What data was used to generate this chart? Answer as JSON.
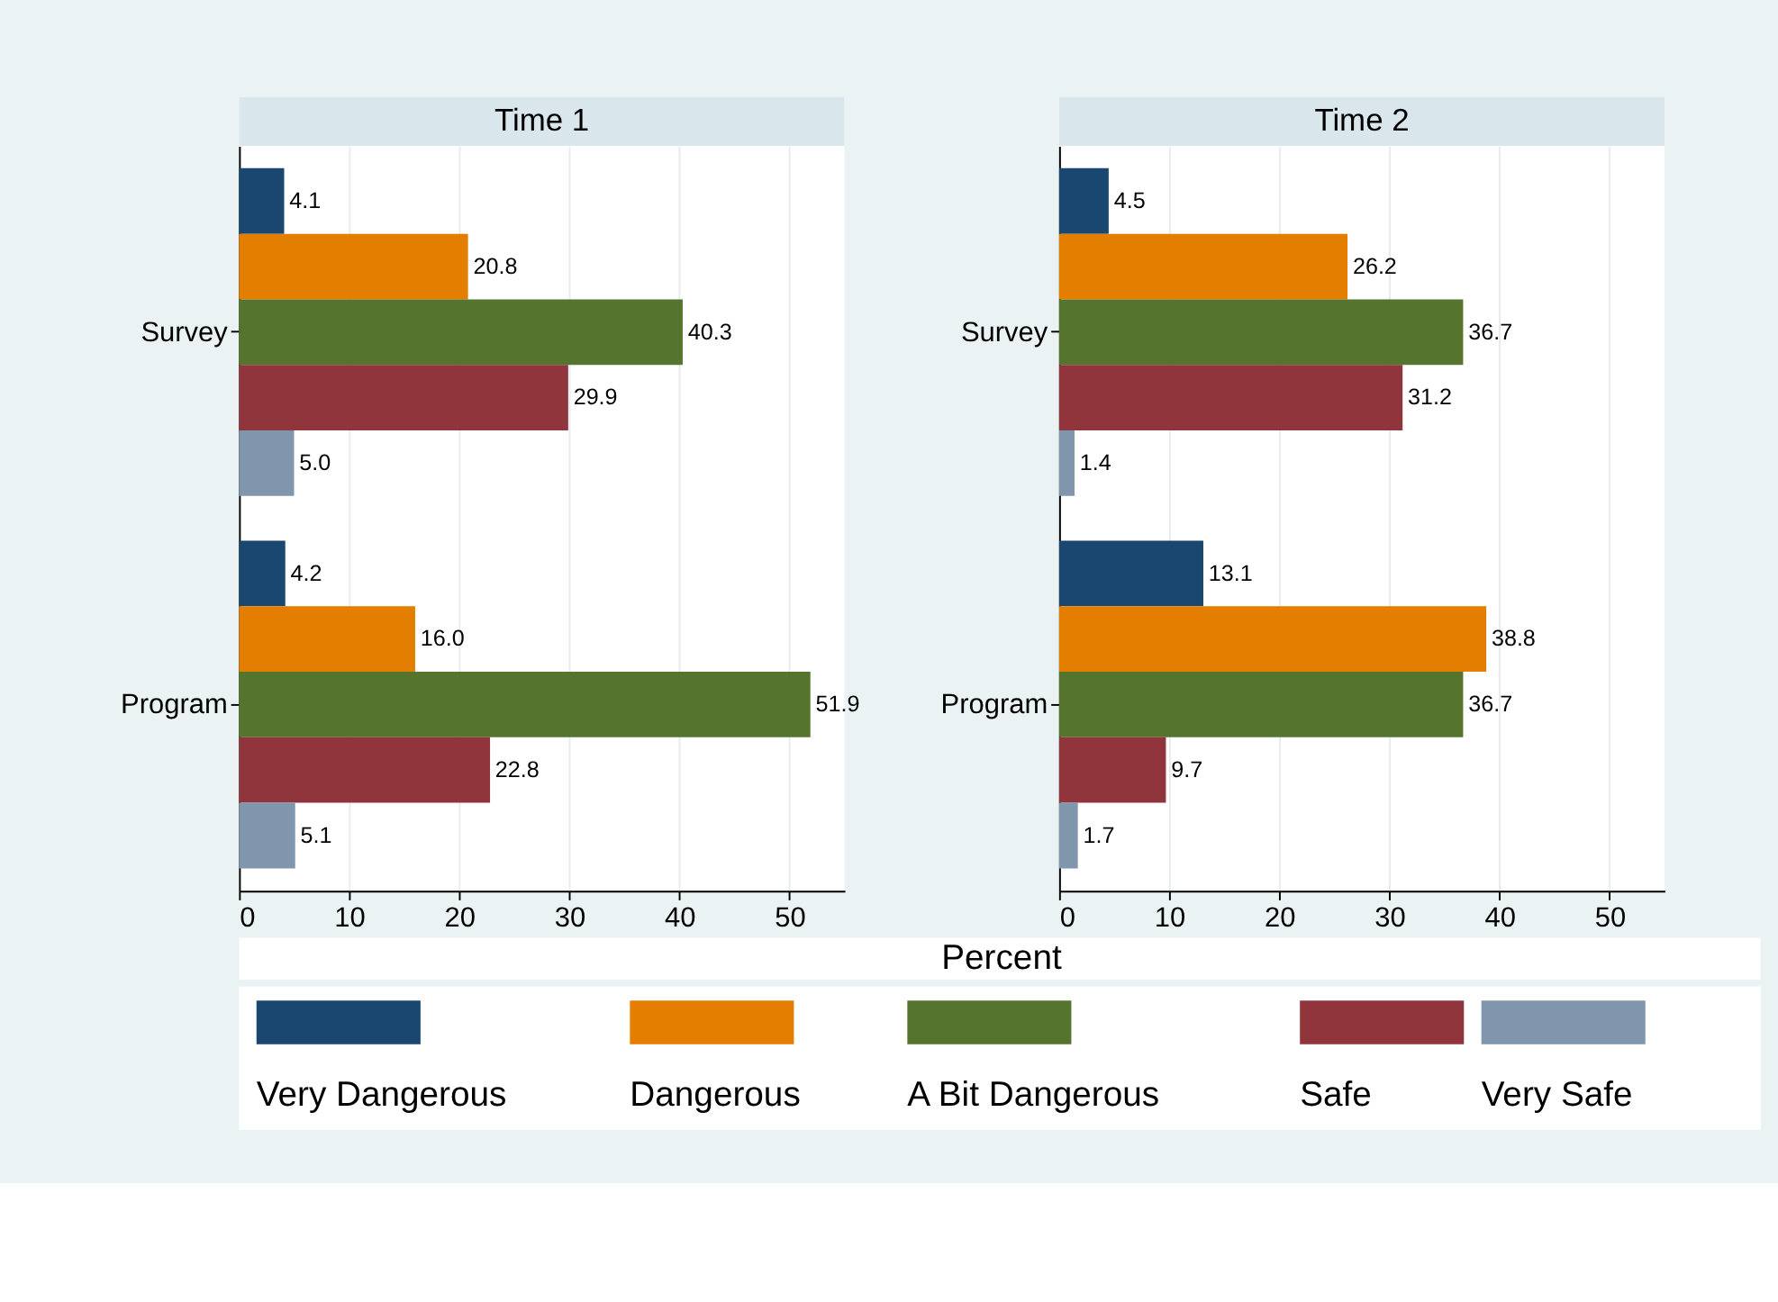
{
  "chart_data": [
    {
      "type": "bar",
      "title": "Time 1",
      "orientation": "horizontal",
      "categories": [
        "Survey",
        "Program"
      ],
      "xlabel": "Percent",
      "xlim": [
        0,
        55
      ],
      "xticks": [
        0,
        10,
        20,
        30,
        40,
        50
      ],
      "grid": "x",
      "legend": "bottom",
      "data_labels": true,
      "series": [
        {
          "name": "Very Dangerous",
          "color": "#1a476f",
          "values": [
            4.1,
            4.2
          ],
          "value_labels": [
            "4.1",
            "4.2"
          ]
        },
        {
          "name": "Dangerous",
          "color": "#e37e00",
          "values": [
            20.8,
            16.0
          ],
          "value_labels": [
            "20.8",
            "16.0"
          ]
        },
        {
          "name": "A Bit Dangerous",
          "color": "#55752f",
          "values": [
            40.3,
            51.9
          ],
          "value_labels": [
            "40.3",
            "51.9"
          ]
        },
        {
          "name": "Safe",
          "color": "#90353b",
          "values": [
            29.9,
            22.8
          ],
          "value_labels": [
            "29.9",
            "22.8"
          ]
        },
        {
          "name": "Very Safe",
          "color": "#8096ad",
          "values": [
            5.0,
            5.1
          ],
          "value_labels": [
            "5.0",
            "5.1"
          ]
        }
      ]
    },
    {
      "type": "bar",
      "title": "Time 2",
      "orientation": "horizontal",
      "categories": [
        "Survey",
        "Program"
      ],
      "xlim": [
        0,
        55
      ],
      "xticks": [
        0,
        10,
        20,
        30,
        40,
        50
      ],
      "grid": "x",
      "data_labels": true,
      "series": [
        {
          "name": "Very Dangerous",
          "color": "#1a476f",
          "values": [
            4.5,
            13.1
          ],
          "value_labels": [
            "4.5",
            "13.1"
          ]
        },
        {
          "name": "Dangerous",
          "color": "#e37e00",
          "values": [
            26.2,
            38.8
          ],
          "value_labels": [
            "26.2",
            "38.8"
          ]
        },
        {
          "name": "A Bit Dangerous",
          "color": "#55752f",
          "values": [
            36.7,
            36.7
          ],
          "value_labels": [
            "36.7",
            "36.7"
          ]
        },
        {
          "name": "Safe",
          "color": "#90353b",
          "values": [
            31.2,
            9.7
          ],
          "value_labels": [
            "31.2",
            "9.7"
          ]
        },
        {
          "name": "Very Safe",
          "color": "#8096ad",
          "values": [
            1.4,
            1.7
          ],
          "value_labels": [
            "1.4",
            "1.7"
          ]
        }
      ]
    }
  ]
}
